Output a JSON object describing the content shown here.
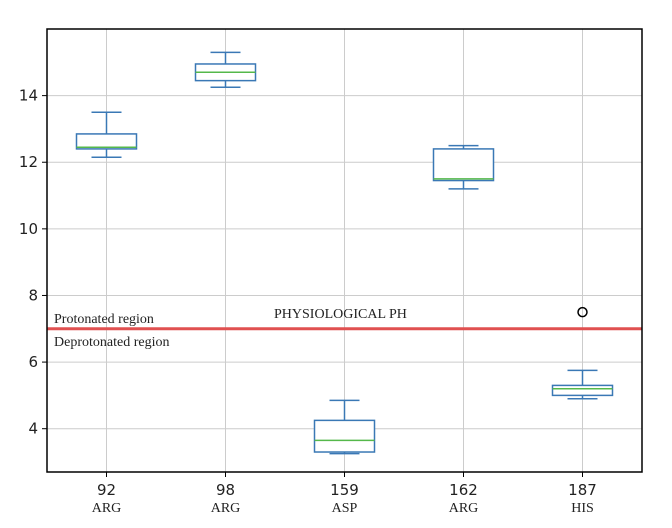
{
  "chart_data": {
    "type": "box",
    "categories": [
      {
        "label": "92",
        "sublabel": "ARG"
      },
      {
        "label": "98",
        "sublabel": "ARG"
      },
      {
        "label": "159",
        "sublabel": "ASP"
      },
      {
        "label": "162",
        "sublabel": "ARG"
      },
      {
        "label": "187",
        "sublabel": "HIS"
      }
    ],
    "boxes": [
      {
        "whisker_low": 12.15,
        "q1": 12.4,
        "median": 12.45,
        "q3": 12.85,
        "whisker_high": 13.5,
        "outliers": []
      },
      {
        "whisker_low": 14.25,
        "q1": 14.45,
        "median": 14.7,
        "q3": 14.95,
        "whisker_high": 15.3,
        "outliers": []
      },
      {
        "whisker_low": 3.25,
        "q1": 3.3,
        "median": 3.65,
        "q3": 4.25,
        "whisker_high": 4.85,
        "outliers": []
      },
      {
        "whisker_low": 11.2,
        "q1": 11.45,
        "median": 11.5,
        "q3": 12.4,
        "whisker_high": 12.5,
        "outliers": []
      },
      {
        "whisker_low": 4.9,
        "q1": 5.0,
        "median": 5.2,
        "q3": 5.3,
        "whisker_high": 5.75,
        "outliers": [
          7.5
        ]
      }
    ],
    "ylim": [
      2.7,
      16.0
    ],
    "yticks": [
      4,
      6,
      8,
      10,
      12,
      14
    ],
    "grid": true,
    "reference_line": {
      "y": 7.0,
      "color": "#e05050"
    },
    "annotations": {
      "protonated": "Protonated region",
      "deprotonated": "Deprotonated region",
      "physiological": "PHYSIOLOGICAL PH"
    },
    "colors": {
      "box": "#3a78b5",
      "median": "#55b84b",
      "grid": "#cccccc",
      "axis": "#000000"
    }
  }
}
